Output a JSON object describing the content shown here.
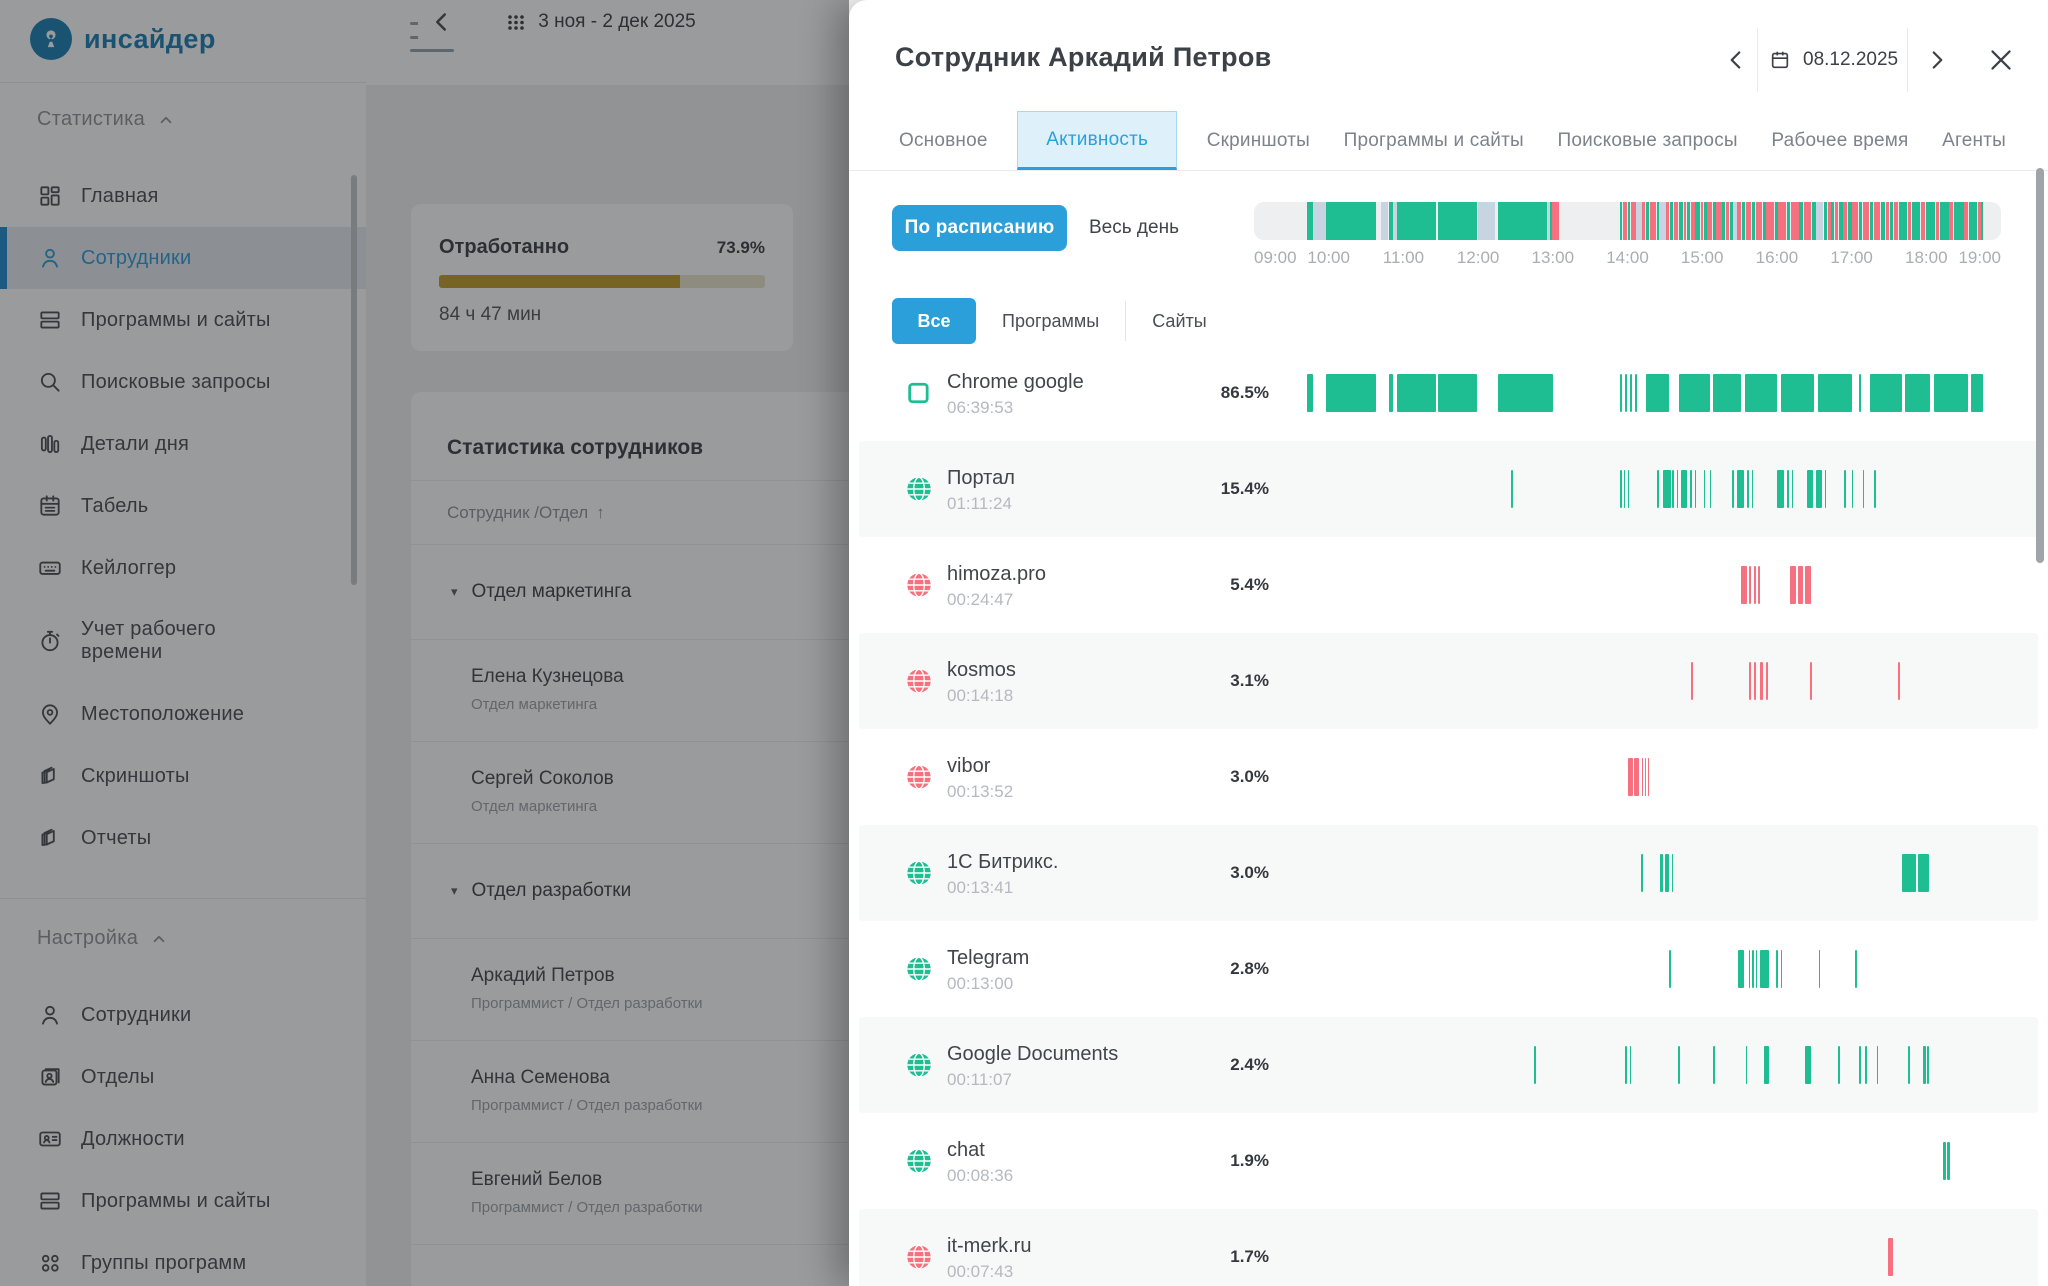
{
  "app": {
    "logo_text": "инсайдер"
  },
  "sidebar": {
    "sections": [
      {
        "label": "Статистика",
        "items": [
          {
            "label": "Главная",
            "icon": "grid-icon"
          },
          {
            "label": "Сотрудники",
            "icon": "user-icon",
            "active": true
          },
          {
            "label": "Программы и сайты",
            "icon": "rows-icon"
          },
          {
            "label": "Поисковые запросы",
            "icon": "search-icon"
          },
          {
            "label": "Детали дня",
            "icon": "bars-icon"
          },
          {
            "label": "Табель",
            "icon": "calendar-icon"
          },
          {
            "label": "Кейлоггер",
            "icon": "keyboard-icon"
          },
          {
            "label": "Учет рабочего времени",
            "icon": "stopwatch-icon",
            "twoline": true
          },
          {
            "label": "Местоположение",
            "icon": "pin-icon"
          },
          {
            "label": "Скриншоты",
            "icon": "layers-icon"
          },
          {
            "label": "Отчеты",
            "icon": "layers-icon"
          }
        ]
      },
      {
        "label": "Настройка",
        "items": [
          {
            "label": "Сотрудники",
            "icon": "user-icon"
          },
          {
            "label": "Отделы",
            "icon": "badge-icon"
          },
          {
            "label": "Должности",
            "icon": "idcard-icon"
          },
          {
            "label": "Программы и сайты",
            "icon": "rows-icon"
          },
          {
            "label": "Группы программ",
            "icon": "dots-grid-icon"
          }
        ]
      }
    ]
  },
  "main": {
    "date_range": "3 ноя - 2 дек 2025",
    "worked_card": {
      "title": "Отработанно",
      "percent_label": "73.9%",
      "percent_value": 73.9,
      "time": "84 ч 47 мин"
    },
    "stats_card": {
      "title": "Статистика сотрудников",
      "column_header": "Сотрудник /Отдел",
      "sort_arrow": "↑",
      "rows": [
        {
          "type": "group",
          "name": "Отдел маркетинга"
        },
        {
          "type": "emp",
          "name": "Елена Кузнецова",
          "dept": "Отдел маркетинга"
        },
        {
          "type": "emp",
          "name": "Сергей Соколов",
          "dept": "Отдел маркетинга"
        },
        {
          "type": "group",
          "name": "Отдел разработки"
        },
        {
          "type": "emp",
          "name": "Аркадий  Петров",
          "dept": "Программист / Отдел разработки"
        },
        {
          "type": "emp",
          "name": "Анна Семенова",
          "dept": "Программист / Отдел разработки"
        },
        {
          "type": "emp",
          "name": "Евгений Белов",
          "dept": "Программист / Отдел разработки"
        }
      ]
    }
  },
  "panel": {
    "title": "Сотрудник Аркадий  Петров",
    "date": "08.12.2025",
    "tabs": [
      {
        "label": "Основное"
      },
      {
        "label": "Активность",
        "active": true
      },
      {
        "label": "Скриншоты"
      },
      {
        "label": "Программы и сайты"
      },
      {
        "label": "Поисковые запросы"
      },
      {
        "label": "Рабочее время"
      },
      {
        "label": "Агенты"
      }
    ],
    "mode": {
      "schedule": "По расписанию",
      "all_day": "Весь день"
    },
    "hours": [
      "09:00",
      "10:00",
      "11:00",
      "12:00",
      "13:00",
      "14:00",
      "15:00",
      "16:00",
      "17:00",
      "18:00",
      "19:00"
    ],
    "filters": [
      "Все",
      "Программы",
      "Сайты"
    ],
    "master_segments": [
      [
        "g",
        0.071,
        0.0785
      ],
      [
        "l",
        0.0785,
        0.096
      ],
      [
        "g",
        0.096,
        0.163
      ],
      [
        "l",
        0.17,
        0.179
      ],
      [
        "g",
        0.181,
        0.1855
      ],
      [
        "l",
        0.1855,
        0.192
      ],
      [
        "g",
        0.192,
        0.243
      ],
      [
        "g",
        0.2465,
        0.298
      ],
      [
        "l",
        0.3,
        0.322
      ],
      [
        "g",
        0.326,
        0.3925
      ],
      [
        "l",
        0.3925,
        0.3965
      ],
      [
        "g",
        0.3965,
        0.3995
      ],
      [
        "r",
        0.3995,
        0.4085
      ],
      [
        "g",
        0.49,
        0.493
      ],
      [
        "r",
        0.494,
        0.5
      ],
      [
        "g",
        0.501,
        0.504
      ],
      [
        "r",
        0.505,
        0.512
      ],
      [
        "l",
        0.512,
        0.52
      ],
      [
        "r",
        0.52,
        0.524
      ],
      [
        "g",
        0.525,
        0.529
      ],
      [
        "r",
        0.53,
        0.538
      ],
      [
        "g",
        0.539,
        0.542
      ],
      [
        "l",
        0.542,
        0.552
      ],
      [
        "r",
        0.552,
        0.556
      ],
      [
        "g",
        0.557,
        0.561
      ],
      [
        "r",
        0.562,
        0.568
      ],
      [
        "g",
        0.569,
        0.574
      ],
      [
        "r",
        0.575,
        0.578
      ],
      [
        "g",
        0.579,
        0.584
      ],
      [
        "r",
        0.585,
        0.59
      ],
      [
        "g",
        0.591,
        0.597
      ],
      [
        "r",
        0.598,
        0.601
      ],
      [
        "g",
        0.602,
        0.606
      ],
      [
        "r",
        0.607,
        0.613
      ],
      [
        "g",
        0.614,
        0.618
      ],
      [
        "r",
        0.619,
        0.626
      ],
      [
        "g",
        0.627,
        0.631
      ],
      [
        "r",
        0.632,
        0.636
      ],
      [
        "g",
        0.637,
        0.641
      ],
      [
        "l",
        0.641,
        0.646
      ],
      [
        "r",
        0.646,
        0.652
      ],
      [
        "g",
        0.653,
        0.657
      ],
      [
        "r",
        0.658,
        0.666
      ],
      [
        "g",
        0.667,
        0.671
      ],
      [
        "r",
        0.672,
        0.68
      ],
      [
        "g",
        0.681,
        0.685
      ],
      [
        "r",
        0.686,
        0.696
      ],
      [
        "g",
        0.697,
        0.701
      ],
      [
        "r",
        0.702,
        0.712
      ],
      [
        "g",
        0.713,
        0.718
      ],
      [
        "r",
        0.719,
        0.729
      ],
      [
        "g",
        0.73,
        0.735
      ],
      [
        "r",
        0.736,
        0.746
      ],
      [
        "g",
        0.747,
        0.752
      ],
      [
        "l",
        0.752,
        0.762
      ],
      [
        "g",
        0.763,
        0.767
      ],
      [
        "r",
        0.768,
        0.772
      ],
      [
        "g",
        0.773,
        0.777
      ],
      [
        "r",
        0.778,
        0.782
      ],
      [
        "g",
        0.783,
        0.788
      ],
      [
        "r",
        0.789,
        0.794
      ],
      [
        "g",
        0.795,
        0.8
      ],
      [
        "r",
        0.801,
        0.809
      ],
      [
        "g",
        0.81,
        0.814
      ],
      [
        "r",
        0.815,
        0.823
      ],
      [
        "g",
        0.824,
        0.829
      ],
      [
        "r",
        0.83,
        0.838
      ],
      [
        "g",
        0.839,
        0.845
      ],
      [
        "r",
        0.846,
        0.85
      ],
      [
        "g",
        0.851,
        0.856
      ],
      [
        "r",
        0.857,
        0.862
      ],
      [
        "g",
        0.863,
        0.874
      ],
      [
        "r",
        0.875,
        0.88
      ],
      [
        "g",
        0.881,
        0.892
      ],
      [
        "r",
        0.893,
        0.898
      ],
      [
        "g",
        0.899,
        0.912
      ],
      [
        "r",
        0.913,
        0.917
      ],
      [
        "g",
        0.918,
        0.93
      ],
      [
        "r",
        0.931,
        0.936
      ],
      [
        "g",
        0.937,
        0.95
      ],
      [
        "r",
        0.951,
        0.956
      ],
      [
        "g",
        0.957,
        0.968
      ],
      [
        "r",
        0.969,
        0.973
      ],
      [
        "g",
        0.973,
        0.976
      ]
    ],
    "apps": [
      {
        "name": "Chrome google",
        "time": "06:39:53",
        "percent": "86.5%",
        "icon": "app-window-icon",
        "color": "green",
        "segments": [
          [
            "g",
            0.071,
            0.0785
          ],
          [
            "g",
            0.096,
            0.163
          ],
          [
            "g",
            0.181,
            0.1855
          ],
          [
            "g",
            0.192,
            0.243
          ],
          [
            "g",
            0.2465,
            0.298
          ],
          [
            "g",
            0.326,
            0.4
          ],
          [
            "g",
            0.49,
            0.493
          ],
          [
            "g",
            0.497,
            0.5
          ],
          [
            "g",
            0.503,
            0.506
          ],
          [
            "g",
            0.51,
            0.513
          ],
          [
            "g",
            0.525,
            0.556
          ],
          [
            "g",
            0.569,
            0.61
          ],
          [
            "g",
            0.614,
            0.652
          ],
          [
            "g",
            0.657,
            0.7
          ],
          [
            "g",
            0.705,
            0.75
          ],
          [
            "g",
            0.755,
            0.8
          ],
          [
            "g",
            0.81,
            0.813
          ],
          [
            "g",
            0.824,
            0.868
          ],
          [
            "g",
            0.872,
            0.905
          ],
          [
            "g",
            0.91,
            0.956
          ],
          [
            "g",
            0.96,
            0.976
          ]
        ]
      },
      {
        "name": "Портал",
        "time": "01:11:24",
        "percent": "15.4%",
        "icon": "globe-icon",
        "color": "green",
        "segments": [
          [
            "g",
            0.344,
            0.347
          ],
          [
            "g",
            0.49,
            0.492
          ],
          [
            "g",
            0.495,
            0.497
          ],
          [
            "g",
            0.5,
            0.502
          ],
          [
            "g",
            0.54,
            0.542
          ],
          [
            "g",
            0.548,
            0.558
          ],
          [
            "g",
            0.56,
            0.562
          ],
          [
            "g",
            0.566,
            0.568
          ],
          [
            "g",
            0.572,
            0.58
          ],
          [
            "g",
            0.584,
            0.586
          ],
          [
            "g",
            0.59,
            0.592
          ],
          [
            "g",
            0.602,
            0.604
          ],
          [
            "g",
            0.61,
            0.612
          ],
          [
            "g",
            0.64,
            0.642
          ],
          [
            "g",
            0.646,
            0.656
          ],
          [
            "g",
            0.66,
            0.662
          ],
          [
            "g",
            0.666,
            0.668
          ],
          [
            "g",
            0.7,
            0.71
          ],
          [
            "g",
            0.714,
            0.716
          ],
          [
            "g",
            0.72,
            0.722
          ],
          [
            "g",
            0.74,
            0.748
          ],
          [
            "g",
            0.752,
            0.76
          ],
          [
            "g",
            0.764,
            0.766
          ],
          [
            "g",
            0.79,
            0.792
          ],
          [
            "g",
            0.8,
            0.802
          ],
          [
            "g",
            0.815,
            0.817
          ],
          [
            "g",
            0.83,
            0.832
          ]
        ]
      },
      {
        "name": "himoza.pro",
        "time": "00:24:47",
        "percent": "5.4%",
        "icon": "globe-icon",
        "color": "red",
        "segments": [
          [
            "r",
            0.652,
            0.66
          ],
          [
            "r",
            0.663,
            0.666
          ],
          [
            "r",
            0.67,
            0.671
          ],
          [
            "r",
            0.675,
            0.676
          ],
          [
            "r",
            0.718,
            0.725
          ],
          [
            "r",
            0.728,
            0.735
          ],
          [
            "r",
            0.738,
            0.745
          ]
        ]
      },
      {
        "name": "kosmos",
        "time": "00:14:18",
        "percent": "3.1%",
        "icon": "globe-icon",
        "color": "red",
        "segments": [
          [
            "r",
            0.585,
            0.588
          ],
          [
            "r",
            0.662,
            0.665
          ],
          [
            "r",
            0.67,
            0.672
          ],
          [
            "r",
            0.678,
            0.681
          ],
          [
            "r",
            0.686,
            0.688
          ],
          [
            "r",
            0.744,
            0.747
          ],
          [
            "r",
            0.862,
            0.865
          ]
        ]
      },
      {
        "name": "vibor",
        "time": "00:13:52",
        "percent": "3.0%",
        "icon": "globe-icon",
        "color": "red",
        "segments": [
          [
            "r",
            0.5,
            0.507
          ],
          [
            "r",
            0.509,
            0.516
          ],
          [
            "r",
            0.519,
            0.52
          ],
          [
            "r",
            0.523,
            0.524
          ],
          [
            "r",
            0.527,
            0.528
          ]
        ]
      },
      {
        "name": "1С Битрикс.",
        "time": "00:13:41",
        "percent": "3.0%",
        "icon": "globe-icon",
        "color": "green",
        "segments": [
          [
            "g",
            0.518,
            0.521
          ],
          [
            "g",
            0.544,
            0.547
          ],
          [
            "g",
            0.55,
            0.556
          ],
          [
            "g",
            0.559,
            0.561
          ],
          [
            "g",
            0.867,
            0.886
          ],
          [
            "g",
            0.889,
            0.903
          ]
        ]
      },
      {
        "name": "Telegram",
        "time": "00:13:00",
        "percent": "2.8%",
        "icon": "globe-icon",
        "color": "green",
        "segments": [
          [
            "g",
            0.556,
            0.558
          ],
          [
            "g",
            0.648,
            0.656
          ],
          [
            "g",
            0.662,
            0.664
          ],
          [
            "g",
            0.667,
            0.669
          ],
          [
            "g",
            0.672,
            0.674
          ],
          [
            "g",
            0.677,
            0.69
          ],
          [
            "g",
            0.699,
            0.701
          ],
          [
            "g",
            0.705,
            0.707
          ],
          [
            "g",
            0.756,
            0.758
          ],
          [
            "g",
            0.805,
            0.807
          ]
        ]
      },
      {
        "name": "Google Documents",
        "time": "00:11:07",
        "percent": "2.4%",
        "icon": "globe-icon",
        "color": "green",
        "segments": [
          [
            "g",
            0.375,
            0.377
          ],
          [
            "g",
            0.497,
            0.5
          ],
          [
            "g",
            0.503,
            0.505
          ],
          [
            "g",
            0.568,
            0.57
          ],
          [
            "g",
            0.615,
            0.617
          ],
          [
            "g",
            0.658,
            0.66
          ],
          [
            "g",
            0.683,
            0.69
          ],
          [
            "g",
            0.738,
            0.745
          ],
          [
            "g",
            0.782,
            0.784
          ],
          [
            "g",
            0.81,
            0.813
          ],
          [
            "g",
            0.818,
            0.82
          ],
          [
            "g",
            0.834,
            0.836
          ],
          [
            "g",
            0.876,
            0.878
          ],
          [
            "g",
            0.896,
            0.899
          ],
          [
            "g",
            0.901,
            0.903
          ]
        ]
      },
      {
        "name": "chat",
        "time": "00:08:36",
        "percent": "1.9%",
        "icon": "globe-icon",
        "color": "green",
        "segments": [
          [
            "g",
            0.922,
            0.926
          ],
          [
            "g",
            0.928,
            0.932
          ]
        ]
      },
      {
        "name": "it-merk.ru",
        "time": "00:07:43",
        "percent": "1.7%",
        "icon": "globe-icon",
        "color": "red",
        "segments": [
          [
            "r",
            0.849,
            0.855
          ]
        ]
      }
    ]
  },
  "colors": {
    "accent_blue": "#2b9fda",
    "logo_blue": "#1b7eb4",
    "green": "#1ebe92",
    "red": "#f6707f",
    "lavender": "#c8d4e1",
    "gold": "#c09e2b"
  }
}
